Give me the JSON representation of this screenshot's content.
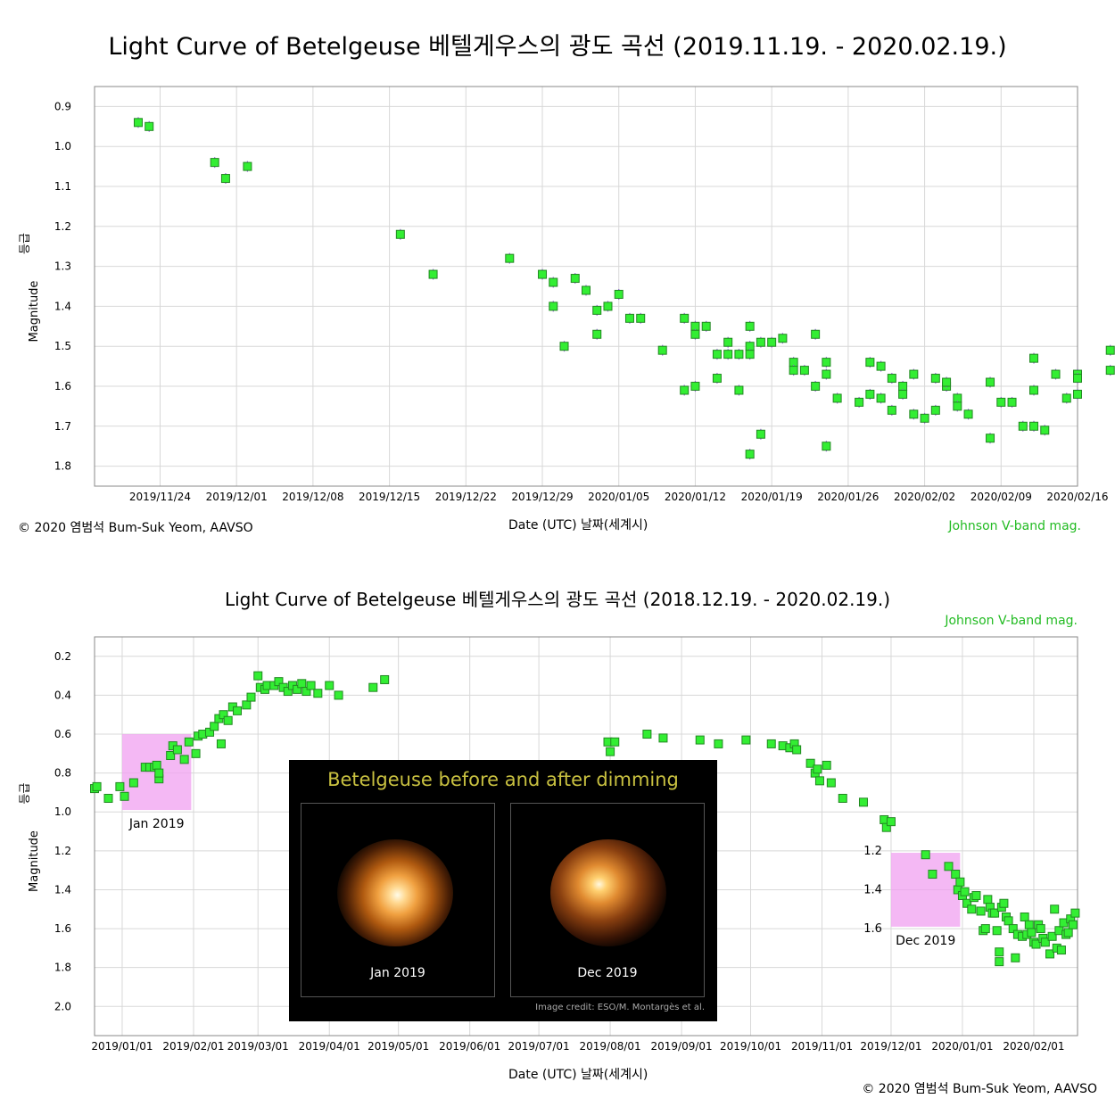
{
  "title_top": "Light Curve of Betelgeuse   베텔게우스의 광도 곡선 (2019.11.19. - 2020.02.19.)",
  "title_bottom": "Light Curve of Betelgeuse   베텔게우스의 광도 곡선 (2018.12.19. - 2020.02.19.)",
  "copyright": "© 2020 염범석 Bum-Suk Yeom, AAVSO",
  "band_label": "Johnson V-band mag.",
  "xaxis_label": "Date (UTC)     날짜(세계시)",
  "yaxis_label": "Magnitude",
  "yaxis_label_kr": "등급",
  "inset": {
    "title": "Betelgeuse before and after dimming",
    "left_label": "Jan 2019",
    "right_label": "Dec 2019",
    "credit": "Image credit: ESO/M. Montargès et al."
  },
  "highlights": [
    "Jan 2019",
    "Dec 2019"
  ],
  "colors": {
    "marker": "#33ee33",
    "marker_edge": "#228822",
    "errorbar": "#9966dd",
    "highlight": "#f0a0f0",
    "band_text": "#22bb22"
  },
  "chart_data": [
    {
      "type": "scatter",
      "title": "Light Curve of Betelgeuse   베텔게우스의 광도 곡선 (2019.11.19. - 2020.02.19.)",
      "xlabel": "Date (UTC)     날짜(세계시)",
      "ylabel": "Magnitude",
      "y_inverted": true,
      "ylim": [
        0.85,
        1.85
      ],
      "xlim": [
        "2019-11-18",
        "2020-02-16"
      ],
      "yticks": [
        0.9,
        1.0,
        1.1,
        1.2,
        1.3,
        1.4,
        1.5,
        1.6,
        1.7,
        1.8
      ],
      "xticks": [
        "2019/11/24",
        "2019/12/01",
        "2019/12/08",
        "2019/12/15",
        "2019/12/22",
        "2019/12/29",
        "2020/01/05",
        "2020/01/12",
        "2020/01/19",
        "2020/01/26",
        "2020/02/02",
        "2020/02/09",
        "2020/02/16"
      ],
      "grid": true,
      "series": [
        {
          "points": [
            [
              "2019-11-22",
              0.94
            ],
            [
              "2019-11-23",
              0.95
            ],
            [
              "2019-11-29",
              1.04
            ],
            [
              "2019-11-30",
              1.08
            ],
            [
              "2019-12-02",
              1.05
            ],
            [
              "2019-12-16",
              1.22
            ],
            [
              "2019-12-19",
              1.32
            ],
            [
              "2019-12-26",
              1.28
            ],
            [
              "2019-12-29",
              1.32
            ],
            [
              "2019-12-30",
              1.34
            ],
            [
              "2019-12-30",
              1.4
            ],
            [
              "2019-12-31",
              1.5
            ],
            [
              "2020-01-01",
              1.33
            ],
            [
              "2020-01-02",
              1.36
            ],
            [
              "2020-01-03",
              1.41
            ],
            [
              "2020-01-03",
              1.47
            ],
            [
              "2020-01-04",
              1.4
            ],
            [
              "2020-01-05",
              1.37
            ],
            [
              "2020-01-06",
              1.43
            ],
            [
              "2020-01-07",
              1.43
            ],
            [
              "2020-01-09",
              1.51
            ],
            [
              "2020-01-11",
              1.43
            ],
            [
              "2020-01-11",
              1.61
            ],
            [
              "2020-01-12",
              1.6
            ],
            [
              "2020-01-12",
              1.45
            ],
            [
              "2020-01-12",
              1.47
            ],
            [
              "2020-01-13",
              1.45
            ],
            [
              "2020-01-14",
              1.52
            ],
            [
              "2020-01-14",
              1.58
            ],
            [
              "2020-01-15",
              1.49
            ],
            [
              "2020-01-15",
              1.52
            ],
            [
              "2020-01-16",
              1.52
            ],
            [
              "2020-01-16",
              1.61
            ],
            [
              "2020-01-17",
              1.5
            ],
            [
              "2020-01-17",
              1.52
            ],
            [
              "2020-01-17",
              1.45
            ],
            [
              "2020-01-17",
              1.77
            ],
            [
              "2020-01-18",
              1.72
            ],
            [
              "2020-01-18",
              1.49
            ],
            [
              "2020-01-19",
              1.49
            ],
            [
              "2020-01-20",
              1.48
            ],
            [
              "2020-01-21",
              1.54
            ],
            [
              "2020-01-21",
              1.56
            ],
            [
              "2020-01-22",
              1.56
            ],
            [
              "2020-01-23",
              1.47
            ],
            [
              "2020-01-23",
              1.6
            ],
            [
              "2020-01-24",
              1.57
            ],
            [
              "2020-01-24",
              1.54
            ],
            [
              "2020-01-24",
              1.75
            ],
            [
              "2020-01-25",
              1.63
            ],
            [
              "2020-01-27",
              1.64
            ],
            [
              "2020-01-28",
              1.54
            ],
            [
              "2020-01-28",
              1.62
            ],
            [
              "2020-01-29",
              1.55
            ],
            [
              "2020-01-29",
              1.63
            ],
            [
              "2020-01-30",
              1.58
            ],
            [
              "2020-01-30",
              1.66
            ],
            [
              "2020-01-31",
              1.6
            ],
            [
              "2020-01-31",
              1.62
            ],
            [
              "2020-02-01",
              1.57
            ],
            [
              "2020-02-01",
              1.67
            ],
            [
              "2020-02-02",
              1.68
            ],
            [
              "2020-02-03",
              1.58
            ],
            [
              "2020-02-03",
              1.66
            ],
            [
              "2020-02-04",
              1.6
            ],
            [
              "2020-02-04",
              1.59
            ],
            [
              "2020-02-05",
              1.63
            ],
            [
              "2020-02-05",
              1.65
            ],
            [
              "2020-02-06",
              1.67
            ],
            [
              "2020-02-08",
              1.59
            ],
            [
              "2020-02-08",
              1.73
            ],
            [
              "2020-02-09",
              1.64
            ],
            [
              "2020-02-10",
              1.64
            ],
            [
              "2020-02-11",
              1.7
            ],
            [
              "2020-02-12",
              1.53
            ],
            [
              "2020-02-12",
              1.61
            ],
            [
              "2020-02-12",
              1.7
            ],
            [
              "2020-02-13",
              1.71
            ],
            [
              "2020-02-14",
              1.57
            ],
            [
              "2020-02-15",
              1.63
            ],
            [
              "2020-02-16",
              1.57
            ],
            [
              "2020-02-16",
              1.62
            ],
            [
              "2020-02-16",
              1.58
            ],
            [
              "2020-02-19",
              1.51
            ],
            [
              "2020-02-19",
              1.56
            ]
          ]
        }
      ]
    },
    {
      "type": "scatter",
      "title": "Light Curve of Betelgeuse   베텔게우스의 광도 곡선 (2018.12.19. - 2020.02.19.)",
      "xlabel": "Date (UTC)     날짜(세계시)",
      "ylabel": "Magnitude",
      "y_inverted": true,
      "ylim": [
        0.1,
        2.15
      ],
      "xlim": [
        "2018-12-20",
        "2020-02-20"
      ],
      "yticks": [
        0.2,
        0.4,
        0.6,
        0.8,
        1.0,
        1.2,
        1.4,
        1.6,
        1.8,
        2.0
      ],
      "xticks": [
        "2019/01/01",
        "2019/02/01",
        "2019/03/01",
        "2019/04/01",
        "2019/05/01",
        "2019/06/01",
        "2019/07/01",
        "2019/08/01",
        "2019/09/01",
        "2019/10/01",
        "2019/11/01",
        "2019/12/01",
        "2020/01/01",
        "2020/02/01"
      ],
      "grid": true,
      "series": [
        {
          "points": [
            [
              "2018-12-20",
              0.88
            ],
            [
              "2018-12-21",
              0.87
            ],
            [
              "2018-12-26",
              0.93
            ],
            [
              "2018-12-31",
              0.87
            ],
            [
              "2019-01-02",
              0.92
            ],
            [
              "2019-01-06",
              0.85
            ],
            [
              "2019-01-11",
              0.77
            ],
            [
              "2019-01-13",
              0.77
            ],
            [
              "2019-01-15",
              0.77
            ],
            [
              "2019-01-16",
              0.76
            ],
            [
              "2019-01-17",
              0.83
            ],
            [
              "2019-01-17",
              0.8
            ],
            [
              "2019-01-22",
              0.71
            ],
            [
              "2019-01-23",
              0.66
            ],
            [
              "2019-01-25",
              0.68
            ],
            [
              "2019-01-28",
              0.73
            ],
            [
              "2019-01-30",
              0.64
            ],
            [
              "2019-02-02",
              0.7
            ],
            [
              "2019-02-03",
              0.61
            ],
            [
              "2019-02-05",
              0.6
            ],
            [
              "2019-02-08",
              0.59
            ],
            [
              "2019-02-10",
              0.56
            ],
            [
              "2019-02-12",
              0.52
            ],
            [
              "2019-02-13",
              0.65
            ],
            [
              "2019-02-14",
              0.5
            ],
            [
              "2019-02-16",
              0.53
            ],
            [
              "2019-02-18",
              0.46
            ],
            [
              "2019-02-20",
              0.48
            ],
            [
              "2019-02-24",
              0.45
            ],
            [
              "2019-02-26",
              0.41
            ],
            [
              "2019-03-01",
              0.3
            ],
            [
              "2019-03-02",
              0.36
            ],
            [
              "2019-03-04",
              0.37
            ],
            [
              "2019-03-05",
              0.35
            ],
            [
              "2019-03-08",
              0.35
            ],
            [
              "2019-03-10",
              0.33
            ],
            [
              "2019-03-12",
              0.36
            ],
            [
              "2019-03-14",
              0.38
            ],
            [
              "2019-03-16",
              0.35
            ],
            [
              "2019-03-18",
              0.37
            ],
            [
              "2019-03-20",
              0.34
            ],
            [
              "2019-03-22",
              0.38
            ],
            [
              "2019-03-24",
              0.35
            ],
            [
              "2019-03-27",
              0.39
            ],
            [
              "2019-04-01",
              0.35
            ],
            [
              "2019-04-05",
              0.4
            ],
            [
              "2019-04-20",
              0.36
            ],
            [
              "2019-04-25",
              0.32
            ],
            [
              "2019-07-31",
              0.64
            ],
            [
              "2019-08-01",
              0.69
            ],
            [
              "2019-08-03",
              0.64
            ],
            [
              "2019-08-17",
              0.6
            ],
            [
              "2019-08-24",
              0.62
            ],
            [
              "2019-09-09",
              0.63
            ],
            [
              "2019-09-17",
              0.65
            ],
            [
              "2019-09-29",
              0.63
            ],
            [
              "2019-10-10",
              0.65
            ],
            [
              "2019-10-15",
              0.66
            ],
            [
              "2019-10-18",
              0.67
            ],
            [
              "2019-10-20",
              0.65
            ],
            [
              "2019-10-21",
              0.68
            ],
            [
              "2019-10-27",
              0.75
            ],
            [
              "2019-10-29",
              0.8
            ],
            [
              "2019-10-30",
              0.78
            ],
            [
              "2019-10-31",
              0.84
            ],
            [
              "2019-11-03",
              0.76
            ],
            [
              "2019-11-05",
              0.85
            ],
            [
              "2019-11-10",
              0.93
            ],
            [
              "2019-11-19",
              0.95
            ],
            [
              "2019-11-28",
              1.04
            ],
            [
              "2019-11-29",
              1.08
            ],
            [
              "2019-12-01",
              1.05
            ],
            [
              "2019-12-16",
              1.22
            ],
            [
              "2019-12-19",
              1.32
            ],
            [
              "2019-12-26",
              1.28
            ],
            [
              "2019-12-29",
              1.32
            ],
            [
              "2019-12-30",
              1.4
            ],
            [
              "2019-12-31",
              1.36
            ],
            [
              "2020-01-01",
              1.43
            ],
            [
              "2020-01-02",
              1.41
            ],
            [
              "2020-01-03",
              1.47
            ],
            [
              "2020-01-05",
              1.5
            ],
            [
              "2020-01-06",
              1.44
            ],
            [
              "2020-01-07",
              1.43
            ],
            [
              "2020-01-09",
              1.51
            ],
            [
              "2020-01-10",
              1.61
            ],
            [
              "2020-01-11",
              1.6
            ],
            [
              "2020-01-12",
              1.45
            ],
            [
              "2020-01-13",
              1.49
            ],
            [
              "2020-01-14",
              1.52
            ],
            [
              "2020-01-15",
              1.52
            ],
            [
              "2020-01-16",
              1.61
            ],
            [
              "2020-01-17",
              1.77
            ],
            [
              "2020-01-17",
              1.72
            ],
            [
              "2020-01-18",
              1.49
            ],
            [
              "2020-01-19",
              1.47
            ],
            [
              "2020-01-20",
              1.54
            ],
            [
              "2020-01-21",
              1.56
            ],
            [
              "2020-01-23",
              1.6
            ],
            [
              "2020-01-24",
              1.75
            ],
            [
              "2020-01-25",
              1.63
            ],
            [
              "2020-01-27",
              1.64
            ],
            [
              "2020-01-28",
              1.54
            ],
            [
              "2020-01-29",
              1.63
            ],
            [
              "2020-01-30",
              1.58
            ],
            [
              "2020-01-31",
              1.62
            ],
            [
              "2020-02-01",
              1.67
            ],
            [
              "2020-02-02",
              1.68
            ],
            [
              "2020-02-03",
              1.58
            ],
            [
              "2020-02-04",
              1.6
            ],
            [
              "2020-02-05",
              1.65
            ],
            [
              "2020-02-06",
              1.67
            ],
            [
              "2020-02-08",
              1.73
            ],
            [
              "2020-02-09",
              1.64
            ],
            [
              "2020-02-10",
              1.5
            ],
            [
              "2020-02-11",
              1.7
            ],
            [
              "2020-02-12",
              1.61
            ],
            [
              "2020-02-13",
              1.71
            ],
            [
              "2020-02-14",
              1.57
            ],
            [
              "2020-02-15",
              1.63
            ],
            [
              "2020-02-16",
              1.62
            ],
            [
              "2020-02-17",
              1.55
            ],
            [
              "2020-02-18",
              1.58
            ],
            [
              "2020-02-19",
              1.52
            ]
          ]
        }
      ],
      "highlight_regions": [
        {
          "label": "Jan 2019",
          "x": [
            "2019-01-01",
            "2019-01-31"
          ],
          "y": [
            0.6,
            0.99
          ]
        },
        {
          "label": "Dec 2019",
          "x": [
            "2019-12-01",
            "2019-12-31"
          ],
          "y": [
            1.21,
            1.59
          ]
        }
      ],
      "secondary_yticks": [
        1.2,
        1.4,
        1.6
      ]
    }
  ]
}
